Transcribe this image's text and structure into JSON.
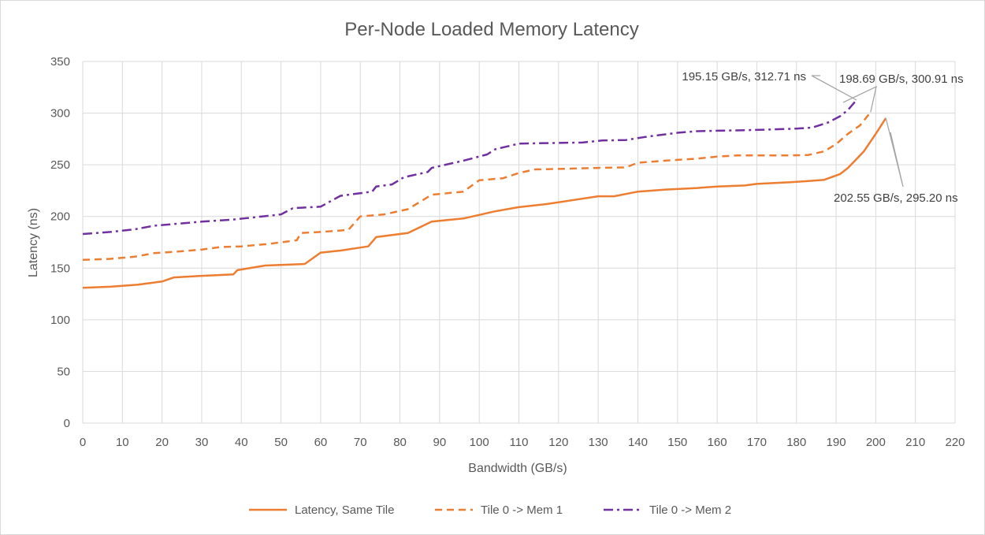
{
  "chart_data": {
    "type": "line",
    "title": "Per-Node Loaded Memory Latency",
    "xlabel": "Bandwidth (GB/s)",
    "ylabel": "Latency (ns)",
    "xlim": [
      0,
      220
    ],
    "ylim": [
      0,
      350
    ],
    "xticks": [
      0,
      10,
      20,
      30,
      40,
      50,
      60,
      70,
      80,
      90,
      100,
      110,
      120,
      130,
      140,
      150,
      160,
      170,
      180,
      190,
      200,
      210,
      220
    ],
    "yticks": [
      0,
      50,
      100,
      150,
      200,
      250,
      300,
      350
    ],
    "grid": true,
    "legend_position": "bottom",
    "series": [
      {
        "name": "Latency, Same Tile",
        "color": "#ed7d31",
        "dash": "solid",
        "points": [
          [
            0,
            131
          ],
          [
            7,
            132
          ],
          [
            14,
            134
          ],
          [
            20,
            137
          ],
          [
            23,
            141
          ],
          [
            30,
            142.5
          ],
          [
            38,
            144
          ],
          [
            39,
            148
          ],
          [
            46,
            152.5
          ],
          [
            56,
            154
          ],
          [
            60,
            165
          ],
          [
            65,
            167
          ],
          [
            72,
            171
          ],
          [
            74,
            180
          ],
          [
            82,
            184
          ],
          [
            88,
            195
          ],
          [
            96,
            198
          ],
          [
            104,
            205
          ],
          [
            110,
            209
          ],
          [
            117,
            212
          ],
          [
            124,
            216
          ],
          [
            130,
            219.5
          ],
          [
            134,
            219.5
          ],
          [
            140,
            224
          ],
          [
            147,
            226
          ],
          [
            155,
            227.5
          ],
          [
            160,
            229
          ],
          [
            167,
            230
          ],
          [
            170,
            231.5
          ],
          [
            178,
            233
          ],
          [
            182,
            234
          ],
          [
            187,
            235.5
          ],
          [
            191,
            241
          ],
          [
            193,
            247
          ],
          [
            197,
            263
          ],
          [
            200,
            280
          ],
          [
            202.55,
            295.2
          ]
        ]
      },
      {
        "name": "Tile 0 -> Mem 1",
        "color": "#ed7d31",
        "dash": "dashed",
        "points": [
          [
            0,
            158
          ],
          [
            7,
            159
          ],
          [
            13,
            161
          ],
          [
            18,
            164.5
          ],
          [
            24,
            166
          ],
          [
            30,
            168
          ],
          [
            35,
            170.5
          ],
          [
            40,
            171
          ],
          [
            47,
            173.5
          ],
          [
            54,
            177
          ],
          [
            55,
            184
          ],
          [
            60,
            185
          ],
          [
            67,
            187
          ],
          [
            70,
            200
          ],
          [
            76,
            202
          ],
          [
            82,
            207
          ],
          [
            88,
            221
          ],
          [
            96,
            224
          ],
          [
            100,
            235
          ],
          [
            106,
            237
          ],
          [
            110,
            242
          ],
          [
            114,
            245.5
          ],
          [
            120,
            246
          ],
          [
            130,
            247
          ],
          [
            137,
            247.5
          ],
          [
            140,
            252
          ],
          [
            147,
            254
          ],
          [
            155,
            256
          ],
          [
            160,
            258
          ],
          [
            165,
            259
          ],
          [
            172,
            259
          ],
          [
            178,
            259
          ],
          [
            183,
            259.5
          ],
          [
            187,
            263
          ],
          [
            190,
            270
          ],
          [
            193,
            280
          ],
          [
            196,
            288
          ],
          [
            198.69,
            300.91
          ]
        ]
      },
      {
        "name": "Tile 0 -> Mem 2",
        "color": "#7030a0",
        "dash": "dashdot",
        "points": [
          [
            0,
            183
          ],
          [
            7,
            185
          ],
          [
            13,
            187.5
          ],
          [
            18,
            191
          ],
          [
            24,
            193
          ],
          [
            30,
            195
          ],
          [
            38,
            197
          ],
          [
            43,
            199
          ],
          [
            50,
            202
          ],
          [
            53,
            208
          ],
          [
            60,
            209.5
          ],
          [
            65,
            220
          ],
          [
            73,
            224
          ],
          [
            74,
            229
          ],
          [
            78,
            231
          ],
          [
            81,
            238
          ],
          [
            87,
            243
          ],
          [
            88,
            247
          ],
          [
            96,
            254
          ],
          [
            102,
            260
          ],
          [
            104,
            265
          ],
          [
            110,
            270.5
          ],
          [
            117,
            271
          ],
          [
            126,
            271.5
          ],
          [
            131,
            273.5
          ],
          [
            137,
            274
          ],
          [
            142,
            277
          ],
          [
            150,
            281
          ],
          [
            155,
            282.5
          ],
          [
            160,
            283
          ],
          [
            167,
            283.5
          ],
          [
            172,
            284
          ],
          [
            180,
            285
          ],
          [
            184,
            286
          ],
          [
            188,
            291
          ],
          [
            191,
            297
          ],
          [
            193,
            303
          ],
          [
            195.15,
            312.71
          ]
        ]
      }
    ],
    "annotations": [
      {
        "text": "195.15 GB/s, 312.71 ns",
        "x": 195.15,
        "y": 312.71,
        "series": "Tile 0 -> Mem 2"
      },
      {
        "text": "198.69 GB/s, 300.91 ns",
        "x": 198.69,
        "y": 300.91,
        "series": "Tile 0 -> Mem 1"
      },
      {
        "text": "202.55 GB/s, 295.20 ns",
        "x": 202.55,
        "y": 295.2,
        "series": "Latency, Same Tile"
      }
    ]
  }
}
